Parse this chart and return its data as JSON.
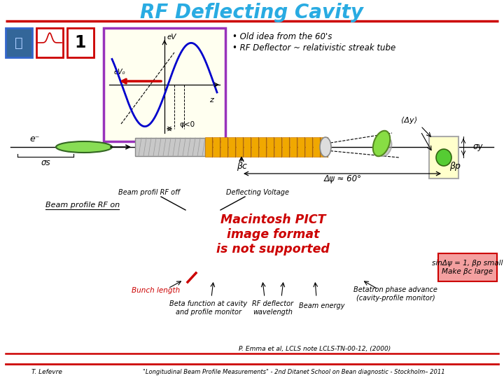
{
  "title": "RF Deflecting Cavity",
  "title_color": "#29ABE2",
  "title_fontsize": 20,
  "bg_color": "#FFFFFF",
  "header_line_color": "#CC0000",
  "bullet1": "• Old idea from the 60's",
  "bullet2": "• RF Deflector ~ relativistic streak tube",
  "footer_author": "T. Lefevre",
  "footer_text": "\"Longitudinal Beam Profile Measurements\" - 2nd Ditanet School on Bean diagnostic - Stockholm– 2011",
  "footer_ref": "P. Emma et al, LCLS note LCLS-TN-00-12, (2000)",
  "box_label": "sinΔψ = 1, βp small\nMake βc large",
  "beam_profile_rf_on": "Beam profile RF on",
  "beam_profile_rf_off": "Beam profil RF off",
  "deflecting_voltage": "Deflecting Voltage",
  "bunch_length": "Bunch length",
  "beta_function": "Beta function at cavity\nand profile monitor",
  "rf_deflector": "RF deflector\nwavelength",
  "beam_energy": "Beam energy",
  "betatron": "Betatron phase advance\n(cavity-profile monitor)",
  "label_ev": "eV",
  "label_ev0": "eV₀",
  "label_z": "z",
  "label_phi": "φ<0",
  "label_sigma_s": "σs",
  "label_sigma_y": "σy",
  "label_deltay": "⟨Δy⟩",
  "label_beta_c": "βc",
  "label_beta_p": "βp",
  "label_delta_psi": "Δψ ≈ 60°",
  "label_eminus": "e⁻",
  "number_label": "1",
  "macintosh_text": "Macintosh PICT\nimage format\nis not supported",
  "macintosh_color": "#CC0000"
}
